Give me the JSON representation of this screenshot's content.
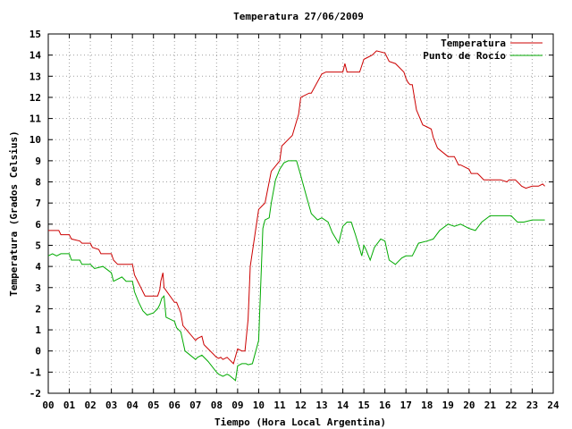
{
  "chart_data": {
    "type": "line",
    "title": "Temperatura 27/06/2009",
    "xlabel": "Tiempo (Hora Local Argentina)",
    "ylabel": "Temperatura (Grados Celsius)",
    "xlim": [
      0,
      24
    ],
    "ylim": [
      -2,
      15
    ],
    "grid": true,
    "legend_position": "top-right",
    "x_ticks": [
      "00",
      "01",
      "02",
      "03",
      "04",
      "05",
      "06",
      "07",
      "08",
      "09",
      "10",
      "11",
      "12",
      "13",
      "14",
      "15",
      "16",
      "17",
      "18",
      "19",
      "20",
      "21",
      "22",
      "23",
      "24"
    ],
    "y_ticks": [
      "-2",
      "-1",
      "0",
      "1",
      "2",
      "3",
      "4",
      "5",
      "6",
      "7",
      "8",
      "9",
      "10",
      "11",
      "12",
      "13",
      "14",
      "15"
    ],
    "series": [
      {
        "name": "Temperatura",
        "color": "#cc0000",
        "x": [
          0.0,
          0.5,
          0.6,
          1.0,
          1.1,
          1.5,
          1.6,
          2.0,
          2.1,
          2.4,
          2.5,
          3.0,
          3.1,
          3.3,
          3.4,
          4.0,
          4.1,
          4.3,
          4.4,
          4.5,
          4.6,
          5.0,
          5.2,
          5.3,
          5.35,
          5.45,
          5.5,
          6.0,
          6.1,
          6.3,
          6.4,
          7.0,
          7.1,
          7.3,
          7.4,
          8.0,
          8.1,
          8.2,
          8.3,
          8.5,
          8.6,
          8.8,
          9.0,
          9.2,
          9.35,
          9.5,
          9.6,
          10.0,
          10.1,
          10.2,
          10.3,
          10.6,
          11.0,
          11.1,
          11.2,
          11.4,
          11.6,
          11.9,
          12.0,
          12.4,
          12.5,
          13.0,
          13.2,
          13.3,
          13.4,
          14.0,
          14.1,
          14.2,
          14.5,
          14.8,
          15.0,
          15.2,
          15.4,
          15.6,
          16.0,
          16.2,
          16.5,
          16.9,
          17.0,
          17.1,
          17.2,
          17.3,
          17.5,
          17.8,
          18.0,
          18.2,
          18.3,
          18.5,
          19.0,
          19.1,
          19.3,
          19.5,
          19.6,
          20.0,
          20.1,
          20.3,
          20.4,
          20.5,
          20.7,
          21.0,
          21.5,
          21.8,
          21.9,
          22.2,
          22.4,
          22.5,
          22.7,
          23.0,
          23.3,
          23.5,
          23.6
        ],
        "values": [
          5.7,
          5.7,
          5.5,
          5.5,
          5.3,
          5.2,
          5.1,
          5.1,
          4.9,
          4.8,
          4.6,
          4.6,
          4.3,
          4.1,
          4.1,
          4.1,
          3.6,
          3.2,
          3.0,
          2.8,
          2.6,
          2.6,
          2.6,
          2.9,
          3.3,
          3.7,
          3.0,
          2.3,
          2.3,
          1.8,
          1.2,
          0.5,
          0.6,
          0.7,
          0.3,
          -0.3,
          -0.35,
          -0.3,
          -0.4,
          -0.3,
          -0.4,
          -0.6,
          0.1,
          0.0,
          0.0,
          1.5,
          4.0,
          6.7,
          6.8,
          6.9,
          7.0,
          8.5,
          9.0,
          9.7,
          9.8,
          10.0,
          10.2,
          11.2,
          12.0,
          12.2,
          12.2,
          13.1,
          13.2,
          13.2,
          13.2,
          13.2,
          13.6,
          13.2,
          13.2,
          13.2,
          13.8,
          13.9,
          14.0,
          14.2,
          14.1,
          13.7,
          13.6,
          13.2,
          12.9,
          12.7,
          12.6,
          12.6,
          11.4,
          10.7,
          10.6,
          10.5,
          10.1,
          9.6,
          9.2,
          9.2,
          9.2,
          8.8,
          8.8,
          8.6,
          8.4,
          8.4,
          8.4,
          8.3,
          8.1,
          8.1,
          8.1,
          8.0,
          8.1,
          8.1,
          7.9,
          7.8,
          7.7,
          7.8,
          7.8,
          7.9,
          7.8
        ]
      },
      {
        "name": "Punto de Rocío",
        "color": "#00aa00",
        "x": [
          0.0,
          0.2,
          0.4,
          0.6,
          1.0,
          1.1,
          1.5,
          1.6,
          2.0,
          2.2,
          2.6,
          3.0,
          3.1,
          3.3,
          3.5,
          3.7,
          4.0,
          4.1,
          4.3,
          4.5,
          4.7,
          5.0,
          5.2,
          5.3,
          5.4,
          5.5,
          5.6,
          6.0,
          6.1,
          6.3,
          6.5,
          7.0,
          7.1,
          7.3,
          7.6,
          8.0,
          8.1,
          8.3,
          8.5,
          8.6,
          8.9,
          9.0,
          9.2,
          9.4,
          9.5,
          9.7,
          10.0,
          10.2,
          10.3,
          10.5,
          10.6,
          10.8,
          11.0,
          11.2,
          11.4,
          11.6,
          11.8,
          12.0,
          12.3,
          12.5,
          12.8,
          13.0,
          13.3,
          13.5,
          13.8,
          14.0,
          14.2,
          14.4,
          14.6,
          14.9,
          15.0,
          15.1,
          15.3,
          15.5,
          15.8,
          16.0,
          16.2,
          16.5,
          16.8,
          17.0,
          17.3,
          17.6,
          18.0,
          18.3,
          18.6,
          19.0,
          19.3,
          19.6,
          20.0,
          20.3,
          20.6,
          21.0,
          21.3,
          21.6,
          22.0,
          22.3,
          22.6,
          23.0,
          23.3,
          23.6
        ],
        "values": [
          4.5,
          4.6,
          4.5,
          4.6,
          4.6,
          4.3,
          4.3,
          4.1,
          4.1,
          3.9,
          4.0,
          3.7,
          3.3,
          3.4,
          3.5,
          3.3,
          3.3,
          2.8,
          2.3,
          1.9,
          1.7,
          1.8,
          2.0,
          2.2,
          2.5,
          2.6,
          1.6,
          1.4,
          1.1,
          0.9,
          0.0,
          -0.4,
          -0.3,
          -0.2,
          -0.5,
          -1.0,
          -1.1,
          -1.2,
          -1.1,
          -1.15,
          -1.4,
          -0.7,
          -0.6,
          -0.6,
          -0.65,
          -0.6,
          0.5,
          5.8,
          6.2,
          6.3,
          7.0,
          8.1,
          8.6,
          8.9,
          9.0,
          9.0,
          9.0,
          8.3,
          7.2,
          6.5,
          6.2,
          6.3,
          6.1,
          5.6,
          5.1,
          5.9,
          6.1,
          6.1,
          5.5,
          4.5,
          5.0,
          4.8,
          4.3,
          4.9,
          5.3,
          5.2,
          4.3,
          4.1,
          4.4,
          4.5,
          4.5,
          5.1,
          5.2,
          5.3,
          5.7,
          6.0,
          5.9,
          6.0,
          5.8,
          5.7,
          6.1,
          6.4,
          6.4,
          6.4,
          6.4,
          6.1,
          6.1,
          6.2,
          6.2,
          6.2
        ]
      }
    ]
  }
}
